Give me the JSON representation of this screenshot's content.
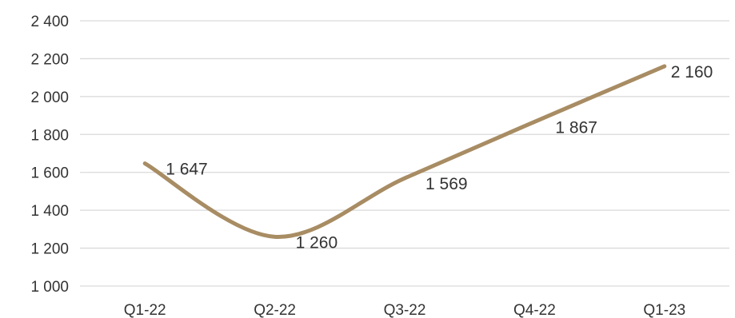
{
  "chart_data": {
    "type": "line",
    "title": "",
    "xlabel": "",
    "ylabel": "",
    "categories": [
      "Q1-22",
      "Q2-22",
      "Q3-22",
      "Q4-22",
      "Q1-23"
    ],
    "series": [
      {
        "values": [
          1647,
          1260,
          1569,
          1867,
          2160
        ],
        "labels": [
          "1 647",
          "1 260",
          "1 569",
          "1 867",
          "2 160"
        ],
        "color": "#a88c63",
        "smooth": true
      }
    ],
    "ylim": [
      1000,
      2400
    ],
    "yticks": [
      {
        "value": 1000,
        "label": "1 000"
      },
      {
        "value": 1200,
        "label": "1 200"
      },
      {
        "value": 1400,
        "label": "1 400"
      },
      {
        "value": 1600,
        "label": "1 600"
      },
      {
        "value": 1800,
        "label": "1 800"
      },
      {
        "value": 2000,
        "label": "2 000"
      },
      {
        "value": 2200,
        "label": "2 200"
      },
      {
        "value": 2400,
        "label": "2 400"
      }
    ],
    "grid": true,
    "legend": "none"
  }
}
